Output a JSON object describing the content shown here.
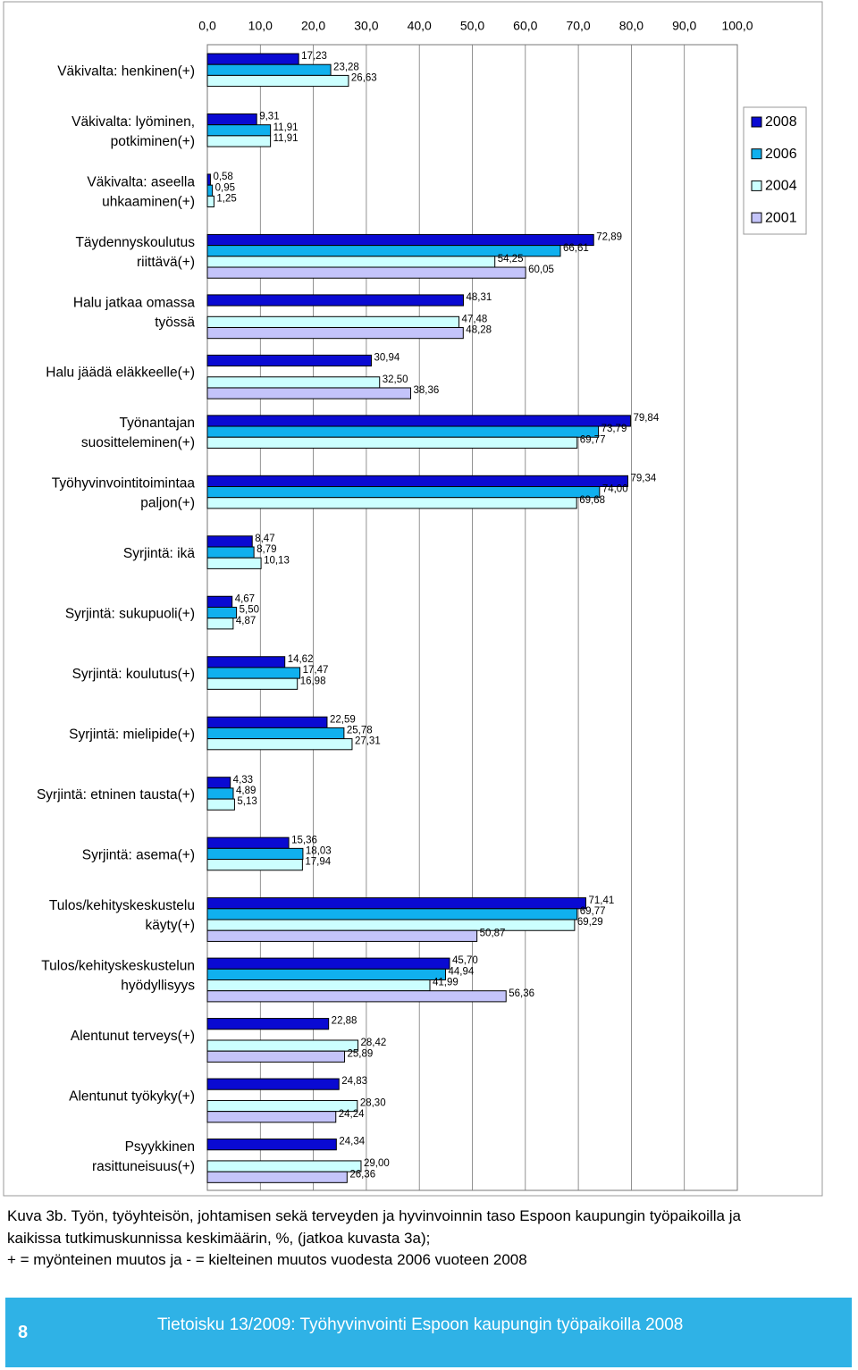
{
  "chart_data": {
    "type": "bar",
    "orientation": "horizontal",
    "categories": [
      "Väkivalta: henkinen(+)",
      "Väkivalta: lyöminen,\npotkiminen(+)",
      "Väkivalta: aseella\nuhkaaminen(+)",
      "Täydennyskoulutus\nriittävä(+)",
      "Halu jatkaa omassa\ntyössä",
      "Halu jäädä eläkkeelle(+)",
      "Työnantajan\nsuositteleminen(+)",
      "Työhyvinvointitoimintaa\npaljon(+)",
      "Syrjintä: ikä",
      "Syrjintä: sukupuoli(+)",
      "Syrjintä: koulutus(+)",
      "Syrjintä: mielipide(+)",
      "Syrjintä: etninen tausta(+)",
      "Syrjintä: asema(+)",
      "Tulos/kehityskeskustelu\nkäyty(+)",
      "Tulos/kehityskeskustelun\nhyödyllisyys",
      "Alentunut terveys(+)",
      "Alentunut työkyky(+)",
      "Psyykkinen\nrasittuneisuus(+)"
    ],
    "series": [
      {
        "name": "2008",
        "color": "#0a0ad2",
        "values": [
          17.23,
          9.31,
          0.58,
          72.89,
          48.31,
          30.94,
          79.84,
          79.34,
          8.47,
          4.67,
          14.62,
          22.59,
          4.33,
          15.36,
          71.41,
          45.7,
          22.88,
          24.83,
          24.34
        ],
        "value_labels": [
          "17,23",
          "9,31",
          "0,58",
          "72,89",
          "48,31",
          "30,94",
          "79,84",
          "79,34",
          "8,47",
          "4,67",
          "14,62",
          "22,59",
          "4,33",
          "15,36",
          "71,41",
          "45,70",
          "22,88",
          "24,83",
          "24,34"
        ]
      },
      {
        "name": "2006",
        "color": "#10b0ee",
        "values": [
          23.28,
          11.91,
          0.95,
          66.61,
          null,
          null,
          73.79,
          74.0,
          8.79,
          5.5,
          17.47,
          25.78,
          4.89,
          18.03,
          69.77,
          44.94,
          null,
          null,
          null
        ],
        "value_labels": [
          "23,28",
          "11,91",
          "0,95",
          "66,61",
          null,
          null,
          "73,79",
          "74,00",
          "8,79",
          "5,50",
          "17,47",
          "25,78",
          "4,89",
          "18,03",
          "69,77",
          "44,94",
          null,
          null,
          null
        ]
      },
      {
        "name": "2004",
        "color": "#ccffff",
        "values": [
          26.63,
          11.91,
          1.25,
          54.25,
          47.48,
          32.5,
          69.77,
          69.68,
          10.13,
          4.87,
          16.98,
          27.31,
          5.13,
          17.94,
          69.29,
          41.99,
          28.42,
          28.3,
          29.0
        ],
        "value_labels": [
          "26,63",
          "11,91",
          "1,25",
          "54,25",
          "47,48",
          "32,50",
          "69,77",
          "69,68",
          "10,13",
          "4,87",
          "16,98",
          "27,31",
          "5,13",
          "17,94",
          "69,29",
          "41,99",
          "28,42",
          "28,30",
          "29,00"
        ]
      },
      {
        "name": "2001",
        "color": "#c4c4fa",
        "values": [
          null,
          null,
          null,
          60.05,
          48.28,
          38.36,
          null,
          null,
          null,
          null,
          null,
          null,
          null,
          null,
          50.87,
          56.36,
          25.89,
          24.24,
          26.36
        ],
        "value_labels": [
          null,
          null,
          null,
          "60,05",
          "48,28",
          "38,36",
          null,
          null,
          null,
          null,
          null,
          null,
          null,
          null,
          "50,87",
          "56,36",
          "25,89",
          "24,24",
          "26,36"
        ]
      }
    ],
    "xlim": [
      0,
      100
    ],
    "xticks": [
      {
        "value": 0,
        "label": "0,0"
      },
      {
        "value": 10,
        "label": "10,0"
      },
      {
        "value": 20,
        "label": "20,0"
      },
      {
        "value": 30,
        "label": "30,0"
      },
      {
        "value": 40,
        "label": "40,0"
      },
      {
        "value": 50,
        "label": "50,0"
      },
      {
        "value": 60,
        "label": "60,0"
      },
      {
        "value": 70,
        "label": "70,0"
      },
      {
        "value": 80,
        "label": "80,0"
      },
      {
        "value": 90,
        "label": "90,0"
      },
      {
        "value": 100,
        "label": "100,0"
      }
    ],
    "grid": true,
    "legend": "right"
  },
  "caption": [
    "Kuva 3b. Työn, työyhteisön, johtamisen sekä terveyden ja hyvinvoinnin taso Espoon kaupungin työpaikoilla ja",
    "kaikissa tutkimuskunnissa keskimäärin, %, (jatkoa kuvasta 3a);",
    "+ = myönteinen muutos ja - = kielteinen muutos vuodesta 2006 vuoteen 2008"
  ],
  "footer": {
    "page": "8",
    "text": "Tietoisku 13/2009: Työhyvinvointi Espoon kaupungin työpaikoilla 2008"
  }
}
